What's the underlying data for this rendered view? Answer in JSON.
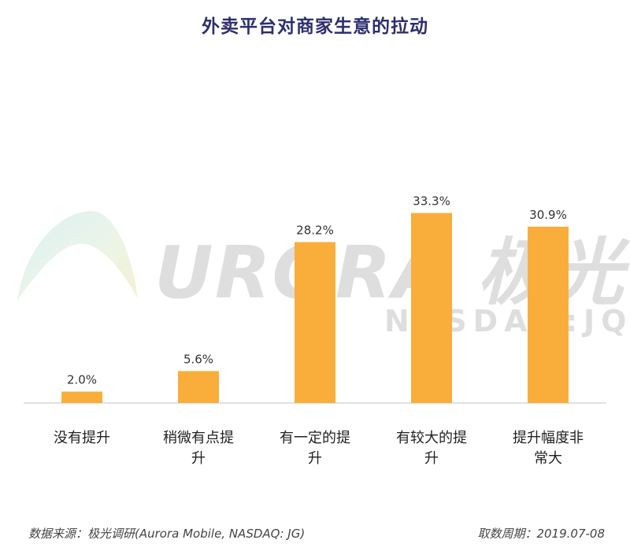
{
  "title": "外卖平台对商家生意的拉动",
  "watermark": {
    "logo_text": "URORA 极光",
    "sub_text": "NASDAQ:JQ"
  },
  "footer": {
    "source": "数据来源：极光调研(Aurora Mobile, NASDAQ: JG)",
    "period": "取数周期：2019.07-08"
  },
  "chart_data": {
    "type": "bar",
    "title": "外卖平台对商家生意的拉动",
    "categories": [
      "没有提升",
      "稍微有点提升",
      "有一定的提升",
      "有较大的提升",
      "提升幅度非常大"
    ],
    "category_lines": [
      [
        "没有提升"
      ],
      [
        "稍微有点提",
        "升"
      ],
      [
        "有一定的提",
        "升"
      ],
      [
        "有较大的提",
        "升"
      ],
      [
        "提升幅度非",
        "常大"
      ]
    ],
    "values": [
      2.0,
      5.6,
      28.2,
      33.3,
      30.9
    ],
    "labels": [
      "2.0%",
      "5.6%",
      "28.2%",
      "33.3%",
      "30.9%"
    ],
    "unit": "%",
    "ylim": [
      0,
      40
    ],
    "grid": false,
    "bar_color": "#f9ae3b"
  }
}
